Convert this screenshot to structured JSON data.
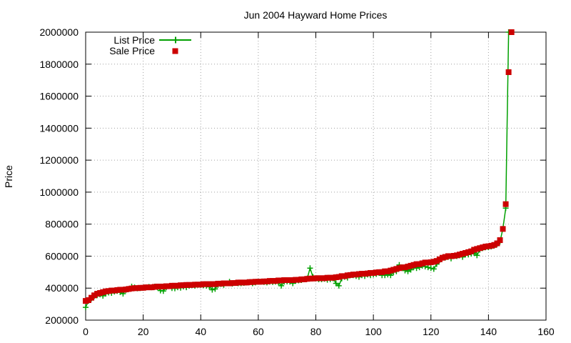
{
  "chart_data": {
    "type": "line",
    "title": "Jun 2004 Hayward Home Prices",
    "xlabel": "",
    "ylabel": "Price",
    "xlim": [
      0,
      160
    ],
    "ylim": [
      200000,
      2000000
    ],
    "x_ticks": [
      0,
      20,
      40,
      60,
      80,
      100,
      120,
      140,
      160
    ],
    "y_ticks": [
      200000,
      400000,
      600000,
      800000,
      1000000,
      1200000,
      1400000,
      1600000,
      1800000,
      2000000
    ],
    "grid": true,
    "legend_position": "top-left",
    "series": [
      {
        "name": "List Price",
        "style": "line+cross",
        "color": "#00a000",
        "points": [
          [
            0,
            280000
          ],
          [
            1,
            320000
          ],
          [
            2,
            335000
          ],
          [
            3,
            350000
          ],
          [
            4,
            355000
          ],
          [
            5,
            360000
          ],
          [
            6,
            352000
          ],
          [
            7,
            365000
          ],
          [
            8,
            372000
          ],
          [
            9,
            370000
          ],
          [
            10,
            378000
          ],
          [
            11,
            382000
          ],
          [
            12,
            375000
          ],
          [
            13,
            365000
          ],
          [
            14,
            388000
          ],
          [
            15,
            395000
          ],
          [
            16,
            410000
          ],
          [
            17,
            405000
          ],
          [
            18,
            398000
          ],
          [
            19,
            400000
          ],
          [
            20,
            402000
          ],
          [
            21,
            405000
          ],
          [
            22,
            408000
          ],
          [
            23,
            405000
          ],
          [
            24,
            410000
          ],
          [
            25,
            405000
          ],
          [
            26,
            385000
          ],
          [
            27,
            382000
          ],
          [
            28,
            405000
          ],
          [
            29,
            412000
          ],
          [
            30,
            400000
          ],
          [
            31,
            398000
          ],
          [
            32,
            405000
          ],
          [
            33,
            402000
          ],
          [
            34,
            410000
          ],
          [
            35,
            405000
          ],
          [
            36,
            415000
          ],
          [
            37,
            418000
          ],
          [
            38,
            415000
          ],
          [
            39,
            420000
          ],
          [
            40,
            420000
          ],
          [
            41,
            418000
          ],
          [
            42,
            415000
          ],
          [
            43,
            408000
          ],
          [
            44,
            390000
          ],
          [
            45,
            395000
          ],
          [
            46,
            420000
          ],
          [
            47,
            425000
          ],
          [
            48,
            420000
          ],
          [
            49,
            430000
          ],
          [
            50,
            440000
          ],
          [
            51,
            428000
          ],
          [
            52,
            432000
          ],
          [
            53,
            430000
          ],
          [
            54,
            430000
          ],
          [
            55,
            432000
          ],
          [
            56,
            435000
          ],
          [
            57,
            438000
          ],
          [
            58,
            430000
          ],
          [
            59,
            435000
          ],
          [
            60,
            440000
          ],
          [
            61,
            440000
          ],
          [
            62,
            438000
          ],
          [
            63,
            435000
          ],
          [
            64,
            440000
          ],
          [
            65,
            438000
          ],
          [
            66,
            440000
          ],
          [
            67,
            435000
          ],
          [
            68,
            415000
          ],
          [
            69,
            440000
          ],
          [
            70,
            442000
          ],
          [
            71,
            440000
          ],
          [
            72,
            430000
          ],
          [
            73,
            445000
          ],
          [
            74,
            448000
          ],
          [
            75,
            450000
          ],
          [
            76,
            455000
          ],
          [
            77,
            460000
          ],
          [
            78,
            525000
          ],
          [
            79,
            470000
          ],
          [
            80,
            460000
          ],
          [
            81,
            455000
          ],
          [
            82,
            455000
          ],
          [
            83,
            458000
          ],
          [
            84,
            452000
          ],
          [
            85,
            455000
          ],
          [
            86,
            460000
          ],
          [
            87,
            430000
          ],
          [
            88,
            415000
          ],
          [
            89,
            460000
          ],
          [
            90,
            470000
          ],
          [
            91,
            465000
          ],
          [
            92,
            480000
          ],
          [
            93,
            480000
          ],
          [
            94,
            475000
          ],
          [
            95,
            470000
          ],
          [
            96,
            480000
          ],
          [
            97,
            475000
          ],
          [
            98,
            485000
          ],
          [
            99,
            480000
          ],
          [
            100,
            485000
          ],
          [
            101,
            488000
          ],
          [
            102,
            495000
          ],
          [
            103,
            480000
          ],
          [
            104,
            480000
          ],
          [
            105,
            485000
          ],
          [
            106,
            480000
          ],
          [
            107,
            500000
          ],
          [
            108,
            505000
          ],
          [
            109,
            545000
          ],
          [
            110,
            530000
          ],
          [
            111,
            510000
          ],
          [
            112,
            505000
          ],
          [
            113,
            515000
          ],
          [
            114,
            530000
          ],
          [
            115,
            525000
          ],
          [
            116,
            530000
          ],
          [
            117,
            540000
          ],
          [
            118,
            535000
          ],
          [
            119,
            530000
          ],
          [
            120,
            525000
          ],
          [
            121,
            520000
          ],
          [
            122,
            550000
          ],
          [
            123,
            575000
          ],
          [
            124,
            590000
          ],
          [
            125,
            590000
          ],
          [
            126,
            595000
          ],
          [
            127,
            585000
          ],
          [
            128,
            600000
          ],
          [
            129,
            600000
          ],
          [
            130,
            605000
          ],
          [
            131,
            595000
          ],
          [
            132,
            610000
          ],
          [
            133,
            610000
          ],
          [
            134,
            615000
          ],
          [
            135,
            620000
          ],
          [
            136,
            605000
          ],
          [
            137,
            640000
          ],
          [
            138,
            650000
          ],
          [
            139,
            655000
          ],
          [
            140,
            655000
          ],
          [
            141,
            660000
          ],
          [
            142,
            665000
          ],
          [
            143,
            675000
          ],
          [
            144,
            690000
          ],
          [
            145,
            770000
          ],
          [
            146,
            900000
          ],
          [
            147,
            2000000
          ],
          [
            148,
            2000000
          ]
        ]
      },
      {
        "name": "Sale Price",
        "style": "square",
        "color": "#cc0000",
        "points": [
          [
            0,
            320000
          ],
          [
            1,
            325000
          ],
          [
            2,
            340000
          ],
          [
            3,
            355000
          ],
          [
            4,
            365000
          ],
          [
            5,
            370000
          ],
          [
            6,
            375000
          ],
          [
            7,
            380000
          ],
          [
            8,
            382000
          ],
          [
            9,
            385000
          ],
          [
            10,
            385000
          ],
          [
            11,
            388000
          ],
          [
            12,
            390000
          ],
          [
            13,
            390000
          ],
          [
            14,
            392000
          ],
          [
            15,
            395000
          ],
          [
            16,
            398000
          ],
          [
            17,
            400000
          ],
          [
            18,
            400000
          ],
          [
            19,
            402000
          ],
          [
            20,
            402000
          ],
          [
            21,
            405000
          ],
          [
            22,
            405000
          ],
          [
            23,
            405000
          ],
          [
            24,
            408000
          ],
          [
            25,
            410000
          ],
          [
            26,
            410000
          ],
          [
            27,
            410000
          ],
          [
            28,
            412000
          ],
          [
            29,
            412000
          ],
          [
            30,
            415000
          ],
          [
            31,
            415000
          ],
          [
            32,
            415000
          ],
          [
            33,
            418000
          ],
          [
            34,
            418000
          ],
          [
            35,
            420000
          ],
          [
            36,
            420000
          ],
          [
            37,
            420000
          ],
          [
            38,
            422000
          ],
          [
            39,
            422000
          ],
          [
            40,
            422000
          ],
          [
            41,
            425000
          ],
          [
            42,
            425000
          ],
          [
            43,
            425000
          ],
          [
            44,
            425000
          ],
          [
            45,
            425000
          ],
          [
            46,
            428000
          ],
          [
            47,
            428000
          ],
          [
            48,
            430000
          ],
          [
            49,
            430000
          ],
          [
            50,
            430000
          ],
          [
            51,
            432000
          ],
          [
            52,
            432000
          ],
          [
            53,
            435000
          ],
          [
            54,
            435000
          ],
          [
            55,
            435000
          ],
          [
            56,
            435000
          ],
          [
            57,
            438000
          ],
          [
            58,
            438000
          ],
          [
            59,
            440000
          ],
          [
            60,
            440000
          ],
          [
            61,
            440000
          ],
          [
            62,
            442000
          ],
          [
            63,
            442000
          ],
          [
            64,
            445000
          ],
          [
            65,
            445000
          ],
          [
            66,
            445000
          ],
          [
            67,
            448000
          ],
          [
            68,
            448000
          ],
          [
            69,
            450000
          ],
          [
            70,
            450000
          ],
          [
            71,
            450000
          ],
          [
            72,
            450000
          ],
          [
            73,
            452000
          ],
          [
            74,
            452000
          ],
          [
            75,
            455000
          ],
          [
            76,
            455000
          ],
          [
            77,
            458000
          ],
          [
            78,
            460000
          ],
          [
            79,
            460000
          ],
          [
            80,
            462000
          ],
          [
            81,
            462000
          ],
          [
            82,
            462000
          ],
          [
            83,
            462000
          ],
          [
            84,
            465000
          ],
          [
            85,
            465000
          ],
          [
            86,
            465000
          ],
          [
            87,
            468000
          ],
          [
            88,
            470000
          ],
          [
            89,
            475000
          ],
          [
            90,
            475000
          ],
          [
            91,
            480000
          ],
          [
            92,
            482000
          ],
          [
            93,
            485000
          ],
          [
            94,
            485000
          ],
          [
            95,
            488000
          ],
          [
            96,
            490000
          ],
          [
            97,
            490000
          ],
          [
            98,
            492000
          ],
          [
            99,
            495000
          ],
          [
            100,
            495000
          ],
          [
            101,
            498000
          ],
          [
            102,
            500000
          ],
          [
            103,
            500000
          ],
          [
            104,
            505000
          ],
          [
            105,
            505000
          ],
          [
            106,
            510000
          ],
          [
            107,
            515000
          ],
          [
            108,
            520000
          ],
          [
            109,
            525000
          ],
          [
            110,
            530000
          ],
          [
            111,
            530000
          ],
          [
            112,
            535000
          ],
          [
            113,
            540000
          ],
          [
            114,
            545000
          ],
          [
            115,
            550000
          ],
          [
            116,
            550000
          ],
          [
            117,
            555000
          ],
          [
            118,
            560000
          ],
          [
            119,
            560000
          ],
          [
            120,
            562000
          ],
          [
            121,
            565000
          ],
          [
            122,
            570000
          ],
          [
            123,
            580000
          ],
          [
            124,
            590000
          ],
          [
            125,
            595000
          ],
          [
            126,
            600000
          ],
          [
            127,
            600000
          ],
          [
            128,
            602000
          ],
          [
            129,
            605000
          ],
          [
            130,
            610000
          ],
          [
            131,
            615000
          ],
          [
            132,
            620000
          ],
          [
            133,
            625000
          ],
          [
            134,
            630000
          ],
          [
            135,
            640000
          ],
          [
            136,
            645000
          ],
          [
            137,
            650000
          ],
          [
            138,
            655000
          ],
          [
            139,
            660000
          ],
          [
            140,
            662000
          ],
          [
            141,
            665000
          ],
          [
            142,
            670000
          ],
          [
            143,
            680000
          ],
          [
            144,
            700000
          ],
          [
            145,
            770000
          ],
          [
            146,
            925000
          ],
          [
            147,
            1750000
          ],
          [
            148,
            2000000
          ]
        ]
      }
    ]
  }
}
